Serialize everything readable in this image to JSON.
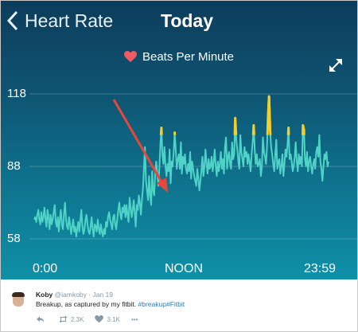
{
  "header": {
    "back_label": "Heart Rate",
    "title": "Today"
  },
  "legend": {
    "label": "Beats Per Minute",
    "heart_color": "#f05a62"
  },
  "icons": {
    "back": "chevron-left-icon",
    "legend": "heart-icon",
    "expand": "expand-arrows-icon"
  },
  "colors": {
    "line": "#4ed3c6",
    "peak": "#f2cf2a",
    "arrow": "#e8463a"
  },
  "chart_data": {
    "type": "line",
    "title": "Beats Per Minute",
    "ylim": [
      58,
      118
    ],
    "yticks": [
      "118",
      "88",
      "58"
    ],
    "xticks": [
      "0:00",
      "NOON",
      "23:59"
    ],
    "grid": true,
    "peak_threshold": 101,
    "annotation": "red arrow pointing at the sharp rise just before noon",
    "series": [
      {
        "values": [
          66,
          67,
          65,
          68,
          70,
          66,
          64,
          69,
          65,
          67,
          71,
          66,
          63,
          70,
          67,
          62,
          68,
          64,
          66,
          69,
          72,
          65,
          63,
          67,
          61,
          66,
          70,
          64,
          62,
          68,
          73,
          66,
          63,
          62,
          67,
          64,
          60,
          63,
          66,
          61,
          63,
          59,
          62,
          65,
          61,
          66,
          70,
          63,
          60,
          62,
          66,
          68,
          64,
          61,
          60,
          63,
          67,
          62,
          59,
          64,
          63,
          61,
          66,
          62,
          60,
          64,
          61,
          59,
          62,
          60,
          65,
          63,
          67,
          69,
          66,
          64,
          62,
          67,
          68,
          64,
          62,
          66,
          70,
          73,
          68,
          66,
          71,
          69,
          72,
          67,
          72,
          68,
          65,
          75,
          71,
          67,
          70,
          74,
          69,
          63,
          72,
          70,
          76,
          73,
          68,
          74,
          79,
          87,
          96,
          82,
          78,
          74,
          84,
          76,
          72,
          86,
          78,
          76,
          85,
          90,
          85,
          80,
          87,
          97,
          104,
          93,
          89,
          96,
          88,
          84,
          89,
          86,
          95,
          81,
          90,
          88,
          94,
          102,
          95,
          87,
          91,
          93,
          87,
          98,
          85,
          92,
          89,
          93,
          87,
          85,
          89,
          86,
          94,
          83,
          90,
          87,
          84,
          82,
          80,
          87,
          83,
          78,
          82,
          86,
          92,
          84,
          88,
          95,
          89,
          85,
          91,
          87,
          88,
          92,
          86,
          90,
          95,
          88,
          84,
          90,
          86,
          89,
          94,
          87,
          91,
          85,
          96,
          100,
          87,
          92,
          94,
          89,
          87,
          98,
          91,
          93,
          108,
          99,
          95,
          90,
          87,
          101,
          94,
          91,
          88,
          96,
          92,
          94,
          89,
          93,
          90,
          86,
          93,
          98,
          105,
          95,
          89,
          93,
          88,
          89,
          91,
          84,
          88,
          100,
          94,
          92,
          89,
          96,
          108,
          117,
          103,
          96,
          93,
          89,
          86,
          93,
          99,
          87,
          90,
          91,
          85,
          88,
          93,
          84,
          89,
          95,
          92,
          97,
          104,
          91,
          93,
          90,
          86,
          88,
          92,
          98,
          90,
          86,
          93,
          89,
          92,
          88,
          105,
          103,
          91,
          88,
          94,
          86,
          90,
          92,
          88,
          85,
          89,
          91,
          87,
          94,
          96,
          92,
          101,
          90,
          87,
          82,
          88,
          93,
          91,
          94,
          88,
          90
        ]
      }
    ]
  },
  "tweet": {
    "name": "Koby",
    "handle": "@iamkoby",
    "date": "· Jan 19",
    "text": "Breakup, as captured by my fitbit.",
    "hashtag1": "#breakup",
    "hashtag2": "#Fitbit",
    "retweets": "2.3K",
    "likes": "3.1K",
    "more": "•••"
  }
}
